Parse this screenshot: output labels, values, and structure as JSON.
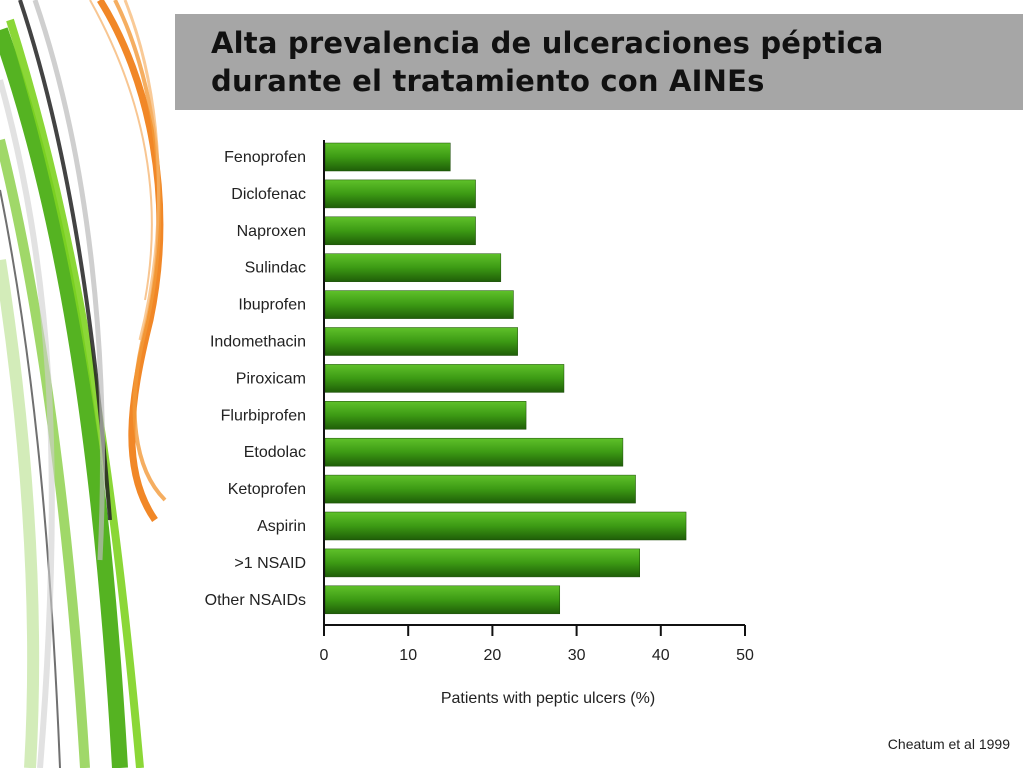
{
  "slide": {
    "title_line1": "Alta prevalencia de ulceraciones péptica",
    "title_line2": "durante el tratamiento con AINEs",
    "source": "Cheatum et al 1999",
    "title_band_color": "#a6a6a6"
  },
  "chart_data": {
    "type": "bar",
    "orientation": "horizontal",
    "categories": [
      "Fenoprofen",
      "Diclofenac",
      "Naproxen",
      "Sulindac",
      "Ibuprofen",
      "Indomethacin",
      "Piroxicam",
      "Flurbiprofen",
      "Etodolac",
      "Ketoprofen",
      "Aspirin",
      ">1 NSAID",
      "Other NSAIDs"
    ],
    "values": [
      15,
      18,
      18,
      21,
      22.5,
      23,
      28.5,
      24,
      35.5,
      37,
      43,
      37.5,
      28
    ],
    "xlabel": "Patients with peptic ulcers (%)",
    "xticks": [
      "0",
      "10",
      "20",
      "30",
      "40",
      "50"
    ],
    "xlim": [
      0,
      50
    ],
    "grid": false,
    "bar_color": "#3c9a14"
  }
}
